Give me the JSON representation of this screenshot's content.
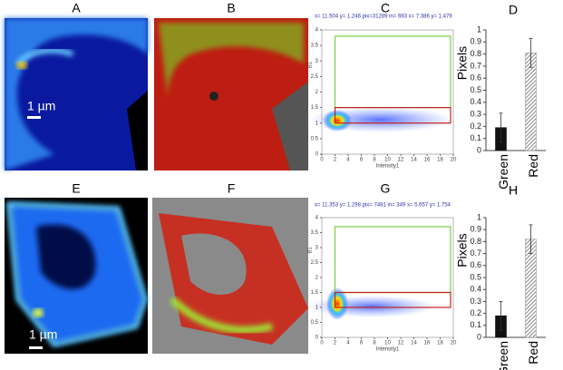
{
  "panels": [
    "A",
    "B",
    "C",
    "D",
    "E",
    "F",
    "G",
    "H"
  ],
  "scale_bars": [
    "1 µm",
    "1 µm"
  ],
  "chart_data": [
    {
      "type": "scatter",
      "header": "x= 11.504 y=  1.246 pix=31289 in=  693 x=  7.386 y=  1.479",
      "xlabel": "Intensity1",
      "ylabel": "B1",
      "xlim": [
        0,
        20
      ],
      "ylim": [
        0,
        4
      ],
      "xticks": [
        0,
        2,
        4,
        6,
        8,
        10,
        12,
        14,
        16,
        18,
        20
      ],
      "yticks": [
        0,
        0.5,
        1,
        1.5,
        2,
        2.5,
        3,
        3.5,
        4
      ]
    },
    {
      "type": "bar",
      "ylabel": "Pixels",
      "categories": [
        "Green",
        "Red"
      ],
      "values": [
        0.19,
        0.81
      ],
      "errors": [
        0.12,
        0.12
      ],
      "colors": [
        "#111111",
        "#9a9a9a"
      ],
      "hatched": [
        false,
        true
      ],
      "ylim": [
        0,
        1
      ],
      "yticks": [
        0,
        0.1,
        0.2,
        0.3,
        0.4,
        0.5,
        0.6,
        0.7,
        0.8,
        0.9,
        1
      ]
    },
    {
      "type": "scatter",
      "header": "x= 11.353 y=  1.298 pix= 7481 in=  349 x=  5.657 y=  1.754",
      "xlabel": "Intensity1",
      "ylabel": "B1",
      "xlim": [
        0,
        20
      ],
      "ylim": [
        0,
        4
      ],
      "xticks": [
        0,
        2,
        4,
        6,
        8,
        10,
        12,
        14,
        16,
        18,
        20
      ],
      "yticks": [
        0,
        0.5,
        1,
        1.5,
        2,
        2.5,
        3,
        3.5,
        4
      ]
    },
    {
      "type": "bar",
      "ylabel": "Pixels",
      "categories": [
        "Green",
        "Red"
      ],
      "values": [
        0.18,
        0.82
      ],
      "errors": [
        0.12,
        0.12
      ],
      "colors": [
        "#111111",
        "#9a9a9a"
      ],
      "hatched": [
        false,
        true
      ],
      "ylim": [
        0,
        1
      ],
      "yticks": [
        0,
        0.1,
        0.2,
        0.3,
        0.4,
        0.5,
        0.6,
        0.7,
        0.8,
        0.9,
        1
      ]
    }
  ]
}
